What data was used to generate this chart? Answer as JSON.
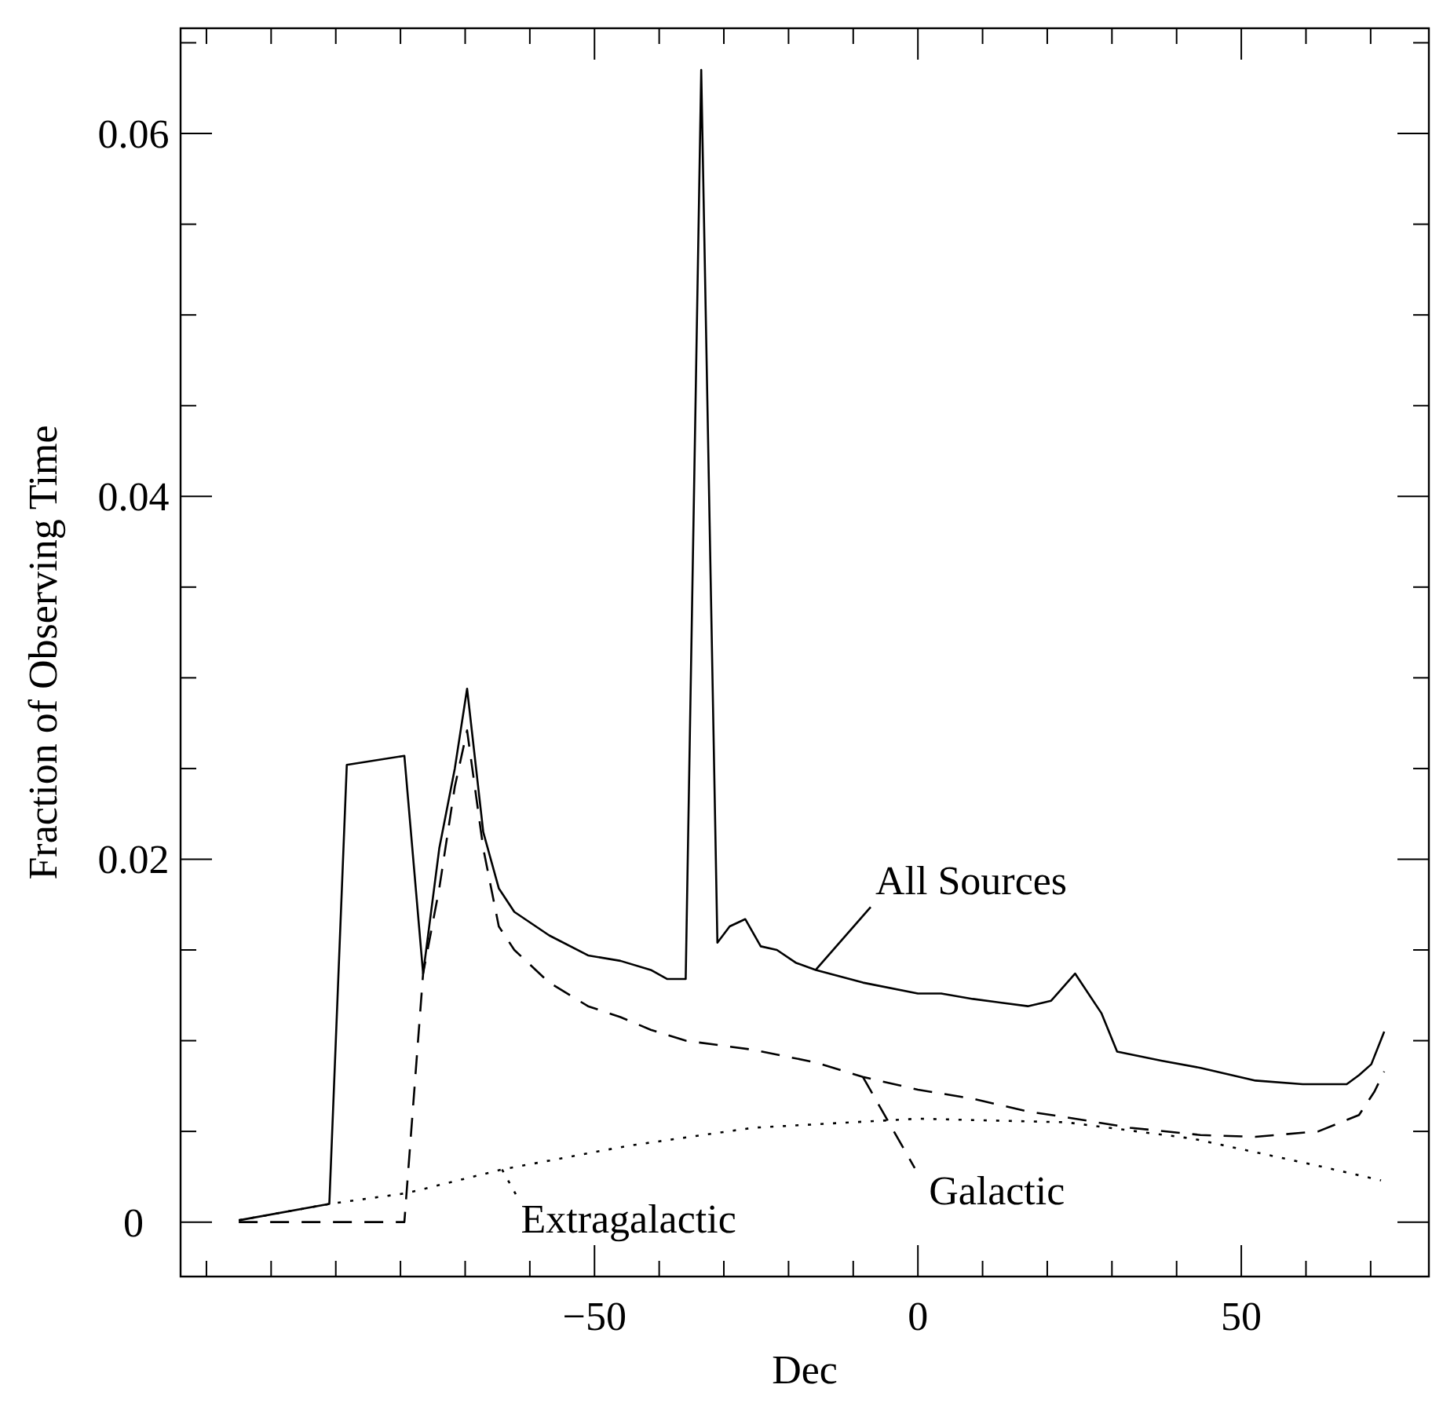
{
  "chart_data": {
    "type": "line",
    "xlabel": "Dec",
    "ylabel": "Fraction of Observing Time",
    "xlim": [
      -114,
      79
    ],
    "ylim": [
      -0.003,
      0.0658
    ],
    "xticks": [
      {
        "value": -110,
        "label": null
      },
      {
        "value": -100,
        "label": null
      },
      {
        "value": -90,
        "label": null
      },
      {
        "value": -80,
        "label": null
      },
      {
        "value": -70,
        "label": null
      },
      {
        "value": -60,
        "label": null
      },
      -50,
      {
        "value": -40,
        "label": null
      },
      {
        "value": -30,
        "label": null
      },
      {
        "value": -20,
        "label": null
      },
      {
        "value": -10,
        "label": null
      },
      0,
      {
        "value": 10,
        "label": null
      },
      {
        "value": 20,
        "label": null
      },
      {
        "value": 30,
        "label": null
      },
      {
        "value": 40,
        "label": null
      },
      50,
      {
        "value": 60,
        "label": null
      },
      {
        "value": 70,
        "label": null
      }
    ],
    "yticks": [
      0,
      {
        "value": 0.005,
        "label": null
      },
      {
        "value": 0.01,
        "label": null
      },
      {
        "value": 0.015,
        "label": null
      },
      0.02,
      {
        "value": 0.025,
        "label": null
      },
      {
        "value": 0.03,
        "label": null
      },
      {
        "value": 0.035,
        "label": null
      },
      0.04,
      {
        "value": 0.045,
        "label": null
      },
      {
        "value": 0.05,
        "label": null
      },
      {
        "value": 0.055,
        "label": null
      },
      0.06,
      {
        "value": 0.065,
        "label": null
      }
    ],
    "grid": false,
    "legend": "bottom",
    "marker": "none",
    "series": [
      {
        "name": "All Sources",
        "color": "#000000",
        "line_style": "solid",
        "x": [
          -105,
          -91,
          -88.3,
          -79.4,
          -76.5,
          -74,
          -71.6,
          -69.7,
          -67.2,
          -64.8,
          -62.4,
          -57,
          -51,
          -46,
          -41.3,
          -38.8,
          -35.9,
          -33.5,
          -31,
          -29.1,
          -26.7,
          -24.3,
          -21.8,
          -18.9,
          -15.8,
          -8.5,
          0,
          3.6,
          8.5,
          17,
          20.6,
          24.3,
          28.4,
          30.8,
          37.6,
          43.7,
          52.2,
          59.5,
          66.3,
          68.2,
          70.1,
          72.1
        ],
        "values": [
          0.0001,
          0.001,
          0.0252,
          0.0257,
          0.0137,
          0.0206,
          0.025,
          0.0294,
          0.0215,
          0.0184,
          0.0171,
          0.0158,
          0.0147,
          0.0144,
          0.0139,
          0.0134,
          0.0134,
          0.0635,
          0.0154,
          0.0163,
          0.0167,
          0.0152,
          0.015,
          0.0143,
          0.0139,
          0.0132,
          0.0126,
          0.0126,
          0.0123,
          0.0119,
          0.0122,
          0.0137,
          0.0115,
          0.0094,
          0.0089,
          0.0085,
          0.0078,
          0.0076,
          0.0076,
          0.0081,
          0.0087,
          0.0105
        ]
      },
      {
        "name": "Galactic",
        "color": "#000000",
        "line_style": "dashed",
        "x": [
          -105,
          -79.4,
          -76.5,
          -74,
          -71.6,
          -69.7,
          -67.2,
          -64.8,
          -62.4,
          -57,
          -51,
          -46,
          -41.3,
          -35.9,
          -25.5,
          -15.8,
          -8.5,
          0,
          8.5,
          17,
          24.3,
          32.8,
          43.7,
          52.2,
          61.9,
          68.2,
          70.6,
          72.1
        ],
        "values": [
          0,
          0,
          0.0137,
          0.0184,
          0.024,
          0.0271,
          0.0206,
          0.0163,
          0.015,
          0.0132,
          0.0119,
          0.0113,
          0.0106,
          0.01,
          0.0095,
          0.0088,
          0.008,
          0.0073,
          0.0068,
          0.0061,
          0.0057,
          0.0052,
          0.0048,
          0.0047,
          0.005,
          0.0059,
          0.0072,
          0.0083
        ]
      },
      {
        "name": "Extragalactic",
        "color": "#000000",
        "line_style": "dotted",
        "x": [
          -105,
          -91,
          -79,
          -64.3,
          -44.9,
          -25.5,
          0,
          23,
          42.5,
          61.9,
          71.6
        ],
        "values": [
          0.0001,
          0.001,
          0.0016,
          0.0029,
          0.0042,
          0.0052,
          0.0057,
          0.0055,
          0.0046,
          0.0031,
          0.0023
        ]
      }
    ]
  }
}
